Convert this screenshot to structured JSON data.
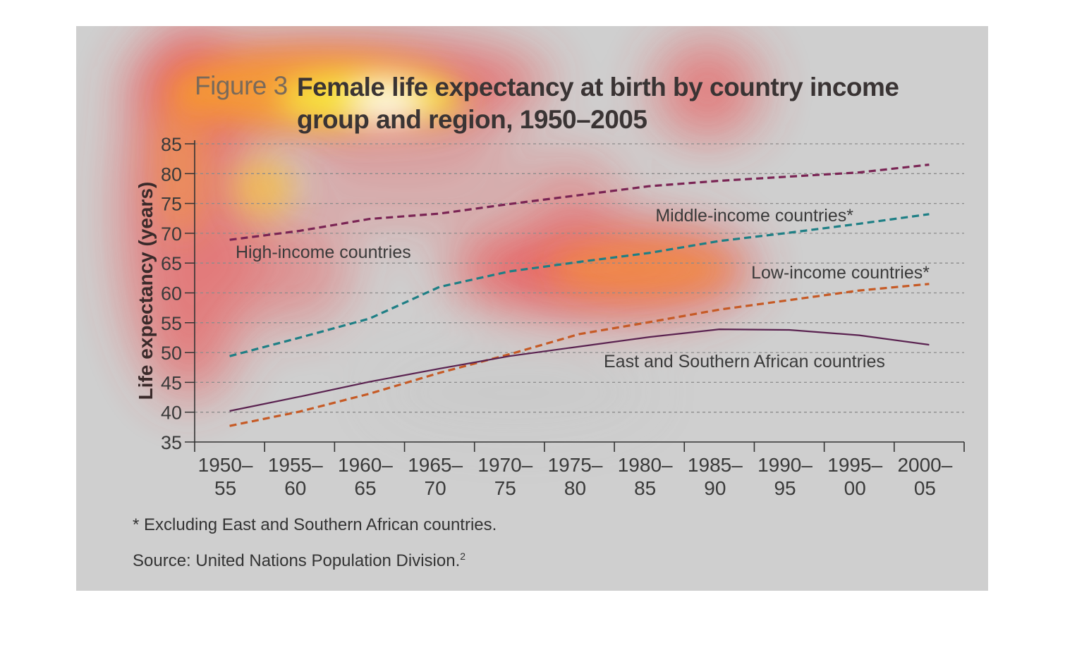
{
  "figure_label": "Figure 3",
  "title": "Female life expectancy at birth by country income group and region, 1950–2005",
  "footnote": "* Excluding East and Southern African countries.",
  "source": "Source: United Nations Population Division.",
  "source_sup": "2",
  "colors": {
    "high": "#7a2454",
    "middle": "#1e7f85",
    "low": "#c65a25",
    "east_south": "#5a2250",
    "grid": "#8c8c8c",
    "axis": "#333333"
  },
  "chart_data": {
    "type": "line",
    "ylabel": "Life expectancy (years)",
    "ylim": [
      35,
      85
    ],
    "yticks": [
      35,
      40,
      45,
      50,
      55,
      60,
      65,
      70,
      75,
      80,
      85
    ],
    "grid": true,
    "categories": [
      [
        "1950–",
        "55"
      ],
      [
        "1955–",
        "60"
      ],
      [
        "1960–",
        "65"
      ],
      [
        "1965–",
        "70"
      ],
      [
        "1970–",
        "75"
      ],
      [
        "1975–",
        "80"
      ],
      [
        "1980–",
        "85"
      ],
      [
        "1985–",
        "90"
      ],
      [
        "1990–",
        "95"
      ],
      [
        "1995–",
        "00"
      ],
      [
        "2000–",
        "05"
      ]
    ],
    "series": [
      {
        "name": "High-income countries",
        "key": "high",
        "dashed": true,
        "values": [
          68.9,
          70.4,
          72.4,
          73.3,
          74.9,
          76.4,
          77.9,
          78.8,
          79.5,
          80.2,
          81.5
        ]
      },
      {
        "name": "Middle-income countries*",
        "key": "middle",
        "dashed": true,
        "values": [
          49.4,
          52.5,
          55.7,
          61.0,
          63.6,
          65.2,
          66.7,
          68.7,
          70.1,
          71.6,
          73.2
        ]
      },
      {
        "name": "Low-income countries*",
        "key": "low",
        "dashed": true,
        "values": [
          37.7,
          40.1,
          43.1,
          46.6,
          49.7,
          53.1,
          55.1,
          57.2,
          58.8,
          60.4,
          61.5
        ]
      },
      {
        "name": "East and Southern African countries",
        "key": "east_south",
        "dashed": false,
        "values": [
          40.2,
          42.6,
          45.1,
          47.3,
          49.4,
          51.0,
          52.6,
          53.9,
          53.8,
          52.9,
          51.3
        ]
      }
    ]
  }
}
